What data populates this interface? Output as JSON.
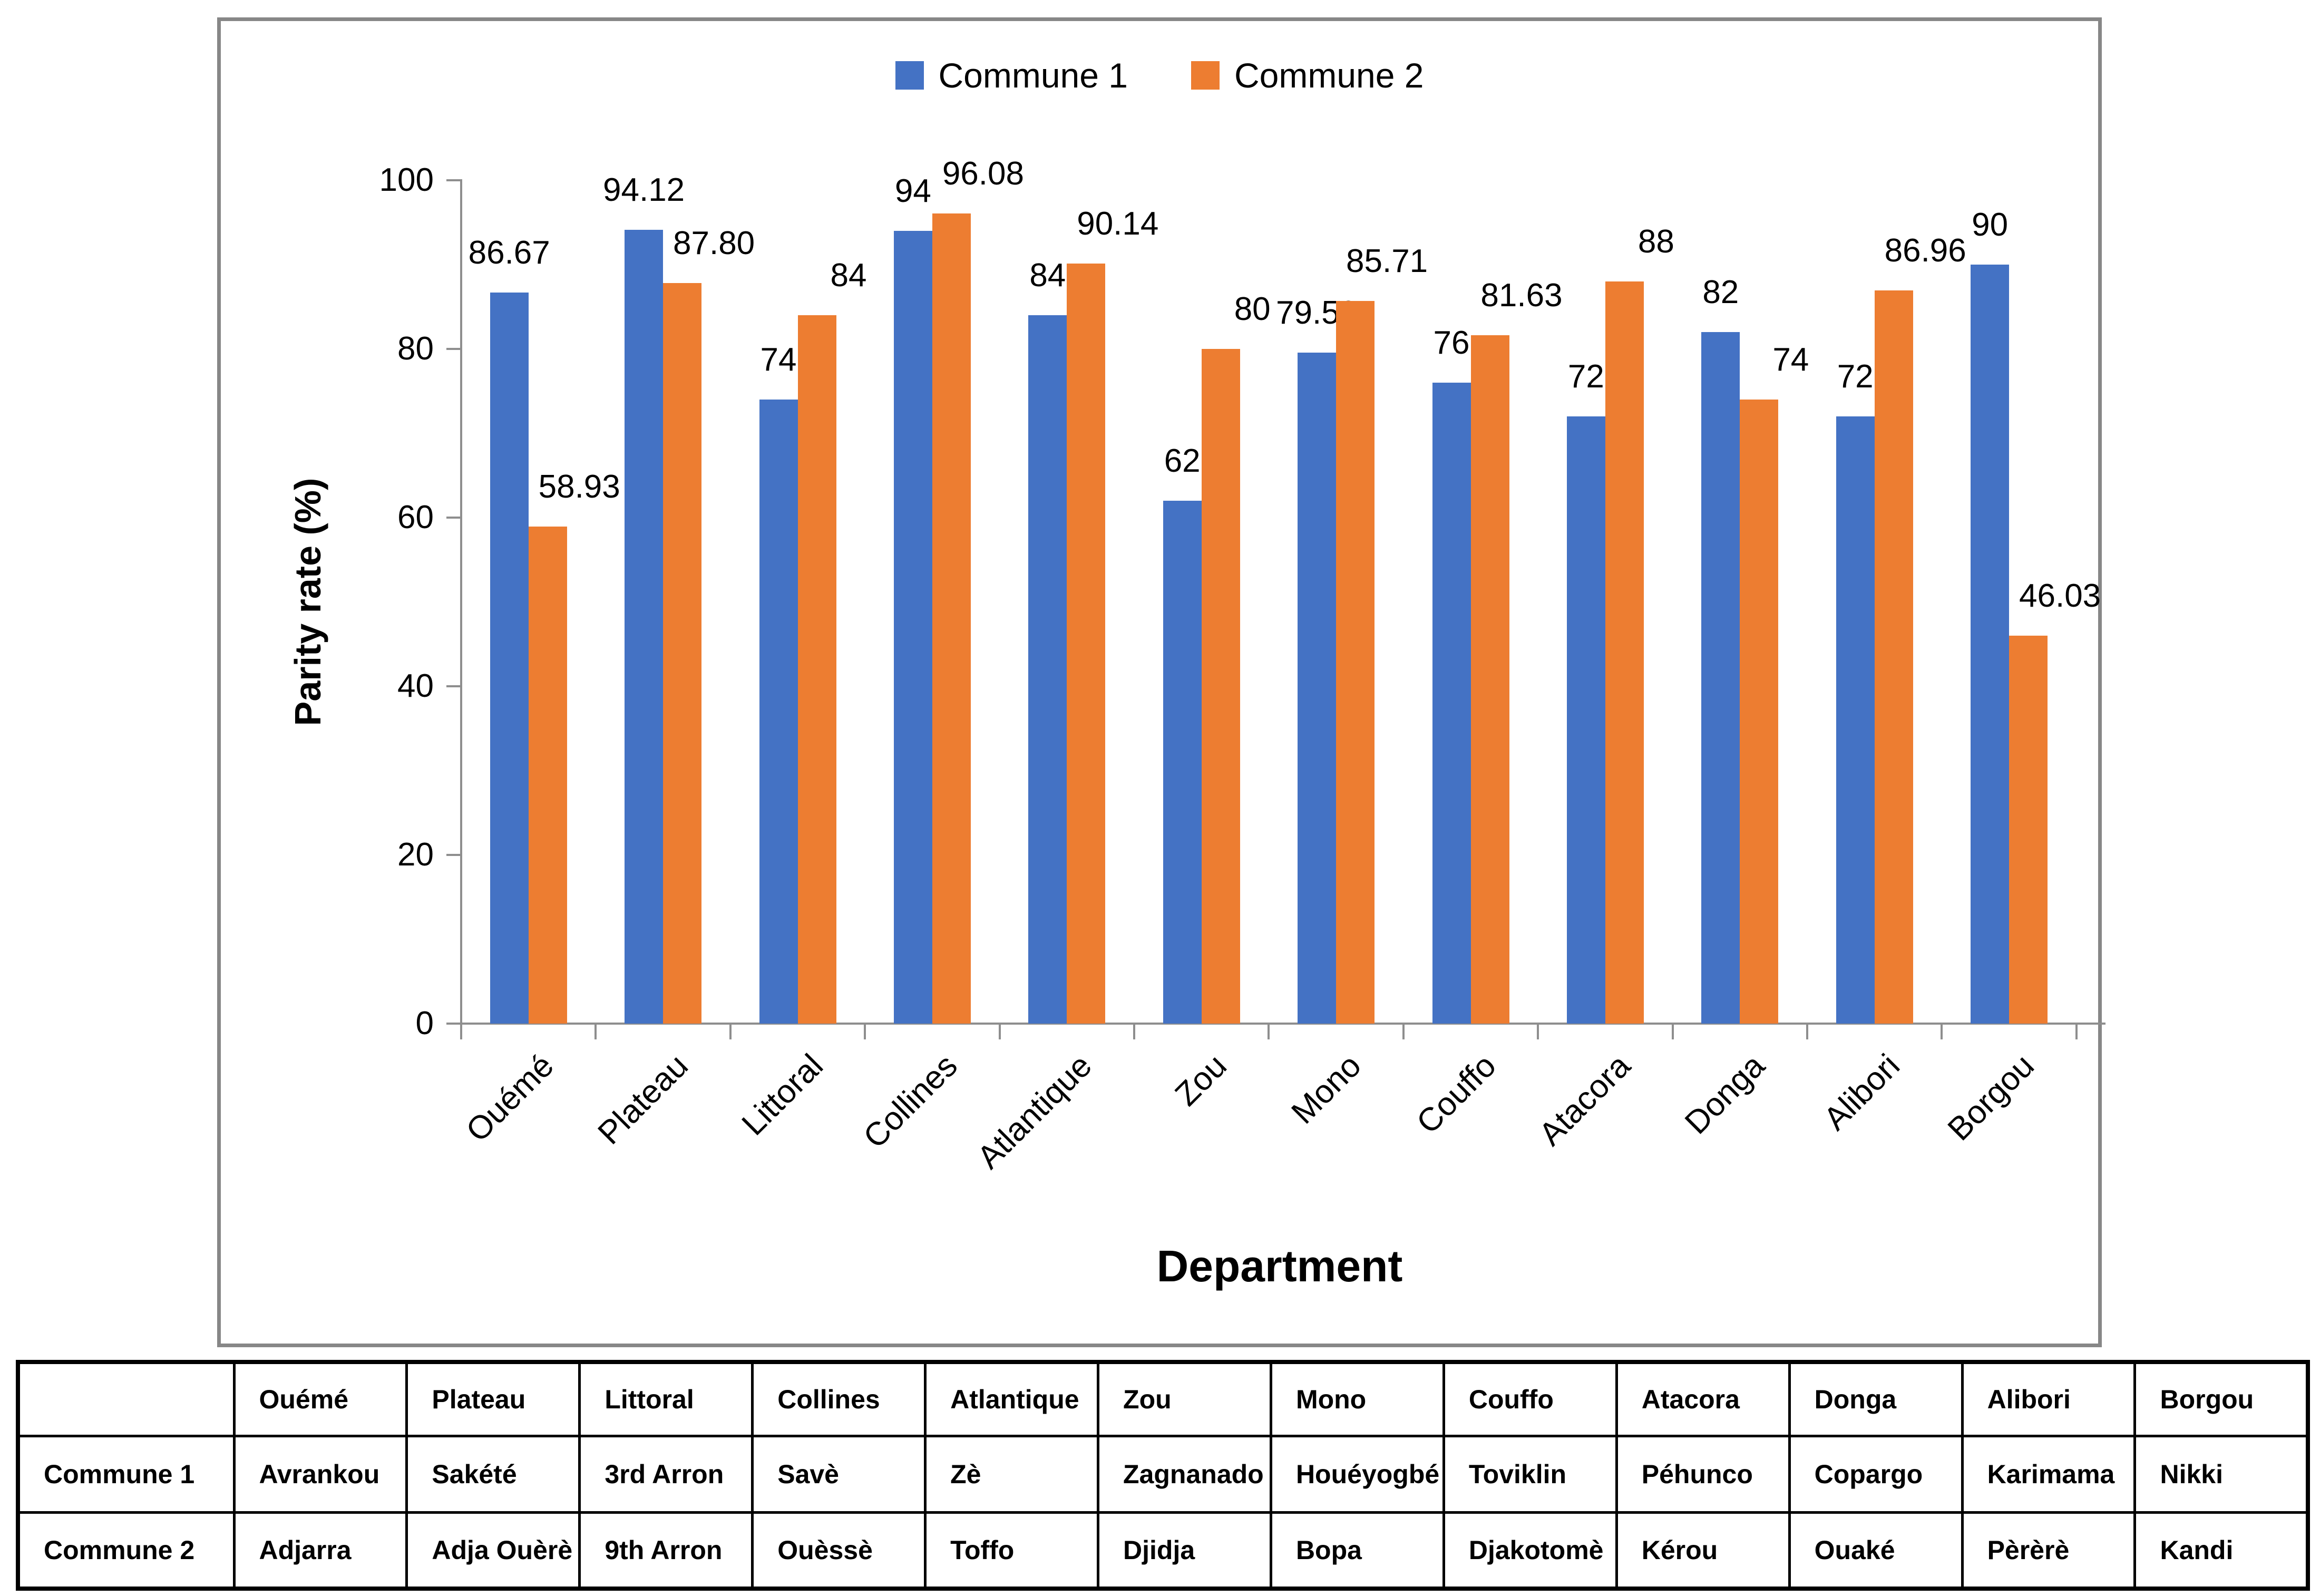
{
  "legend": {
    "items": [
      {
        "label": "Commune 1",
        "color": "#4472C4"
      },
      {
        "label": "Commune 2",
        "color": "#ED7D31"
      }
    ]
  },
  "axes": {
    "y_title": "Parity rate (%)",
    "x_title": "Department",
    "y_ticks": [
      "0",
      "20",
      "40",
      "60",
      "80",
      "100"
    ],
    "y_max": 100
  },
  "chart_data": {
    "type": "bar",
    "title": "",
    "xlabel": "Department",
    "ylabel": "Parity rate (%)",
    "ylim": [
      0,
      100
    ],
    "grid": false,
    "legend_position": "top-center",
    "categories": [
      "Ouémé",
      "Plateau",
      "Littoral",
      "Collines",
      "Atlantique",
      "Zou",
      "Mono",
      "Couffo",
      "Atacora",
      "Donga",
      "Alibori",
      "Borgou"
    ],
    "series": [
      {
        "name": "Commune 1",
        "color": "#4472C4",
        "values": [
          86.67,
          94.12,
          74,
          94,
          84,
          62,
          79.59,
          76,
          72,
          82,
          72,
          90
        ],
        "labels": [
          "86.67",
          "94.12",
          "74",
          "94",
          "84",
          "62",
          "79.59",
          "76",
          "72",
          "82",
          "72",
          "90"
        ]
      },
      {
        "name": "Commune 2",
        "color": "#ED7D31",
        "values": [
          58.93,
          87.8,
          84,
          96.08,
          90.14,
          80,
          85.71,
          81.63,
          88,
          74,
          86.96,
          46.03
        ],
        "labels": [
          "58.93",
          "87.80",
          "84",
          "96.08",
          "90.14",
          "80",
          "85.71",
          "81.63",
          "88",
          "74",
          "86.96",
          "46.03"
        ]
      }
    ]
  },
  "table": {
    "corner": "",
    "columns": [
      "Ouémé",
      "Plateau",
      "Littoral",
      "Collines",
      "Atlantique",
      "Zou",
      "Mono",
      "Couffo",
      "Atacora",
      "Donga",
      "Alibori",
      "Borgou"
    ],
    "rows": [
      {
        "header": "Commune 1",
        "cells": [
          "Avrankou",
          "Sakété",
          "3rd Arron",
          "Savè",
          "Zè",
          "Zagnanado",
          "Houéyogbé",
          "Toviklin",
          "Péhunco",
          "Copargo",
          "Karimama",
          "Nikki"
        ]
      },
      {
        "header": "Commune 2",
        "cells": [
          "Adjarra",
          "Adja Ouèrè",
          "9th Arron",
          "Ouèssè",
          "Toffo",
          "Djidja",
          "Bopa",
          "Djakotomè",
          "Kérou",
          "Ouaké",
          "Pèrèrè",
          "Kandi"
        ]
      }
    ]
  }
}
